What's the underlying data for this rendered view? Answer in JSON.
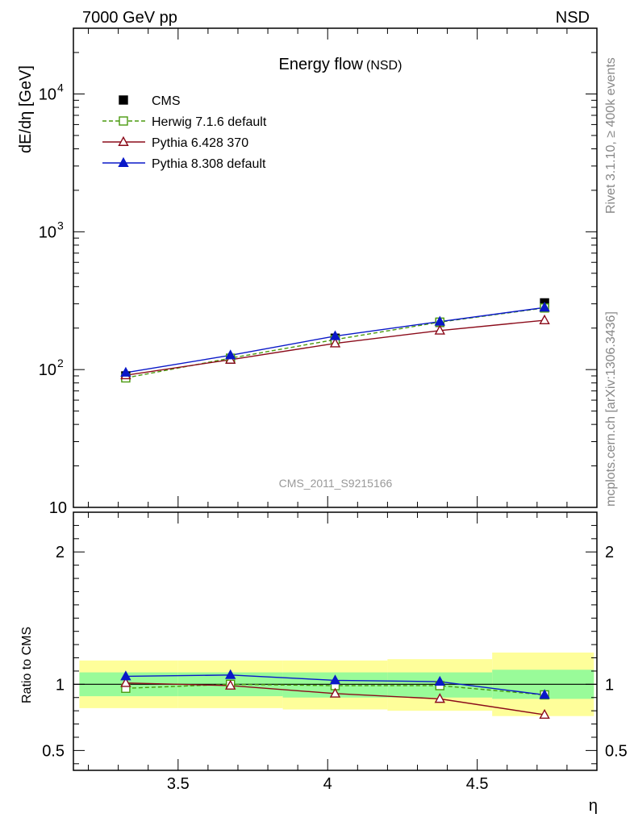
{
  "header": {
    "left": "7000 GeV pp",
    "right": "NSD",
    "side_rivet": "Rivet 3.1.10, ≥ 400k events",
    "side_mcplots": "mcplots.cern.ch [arXiv:1306.3436]"
  },
  "chart_data": [
    {
      "type": "line",
      "title": "Energy flow",
      "subtitle": "(NSD)",
      "watermark": "CMS_2011_S9215166",
      "xlabel": "",
      "ylabel": "dE/dη [GeV]",
      "yscale": "log",
      "xlim": [
        3.15,
        4.9
      ],
      "ylim": [
        10,
        30000
      ],
      "yticks": [
        {
          "v": 10,
          "label": "10",
          "sup": ""
        },
        {
          "v": 100,
          "label": "10",
          "sup": "2"
        },
        {
          "v": 1000,
          "label": "10",
          "sup": "3"
        },
        {
          "v": 10000,
          "label": "10",
          "sup": "4"
        }
      ],
      "legend_position": "top-left",
      "x": [
        3.325,
        3.675,
        4.025,
        4.375,
        4.725
      ],
      "series": [
        {
          "name": "CMS",
          "role": "data",
          "color": "#000000",
          "marker": "square-filled",
          "values": [
            90,
            119,
            169,
            220,
            305
          ]
        },
        {
          "name": "Herwig 7.1.6 default",
          "color": "#4a9a0e",
          "marker": "square-open",
          "dashed": true,
          "values": [
            87,
            121,
            165,
            221,
            280
          ]
        },
        {
          "name": "Pythia 6.428 370",
          "color": "#8b0b1a",
          "marker": "triangle-open",
          "dashed": false,
          "values": [
            91,
            118,
            155,
            192,
            228
          ]
        },
        {
          "name": "Pythia 8.308 default",
          "color": "#0a18c8",
          "marker": "triangle-filled",
          "dashed": false,
          "values": [
            95,
            127,
            175,
            223,
            282
          ]
        }
      ]
    },
    {
      "type": "line",
      "xlabel": "η",
      "ylabel": "Ratio to CMS",
      "xlim": [
        3.15,
        4.9
      ],
      "ylim": [
        0.35,
        2.3
      ],
      "xticks": [
        {
          "v": 3.5,
          "label": "3.5"
        },
        {
          "v": 4.0,
          "label": "4"
        },
        {
          "v": 4.5,
          "label": "4.5"
        }
      ],
      "yticks": [
        {
          "v": 0.5,
          "label": "0.5"
        },
        {
          "v": 1.0,
          "label": "1"
        },
        {
          "v": 2.0,
          "label": "2"
        }
      ],
      "bands": {
        "edges": [
          3.15,
          3.5,
          3.85,
          4.2,
          4.55,
          4.9
        ],
        "green": [
          [
            0.91,
            1.09
          ],
          [
            0.91,
            1.09
          ],
          [
            0.9,
            1.09
          ],
          [
            0.9,
            1.09
          ],
          [
            0.89,
            1.11
          ]
        ],
        "yellow": [
          [
            0.82,
            1.18
          ],
          [
            0.82,
            1.18
          ],
          [
            0.81,
            1.18
          ],
          [
            0.8,
            1.19
          ],
          [
            0.76,
            1.24
          ]
        ],
        "green_color": "#99fb99",
        "yellow_color": "#fefe9a"
      },
      "x": [
        3.325,
        3.675,
        4.025,
        4.375,
        4.725
      ],
      "series": [
        {
          "name": "Herwig 7.1.6 default",
          "color": "#4a9a0e",
          "marker": "square-open",
          "dashed": true,
          "values": [
            0.97,
            1.0,
            0.99,
            0.99,
            0.92
          ]
        },
        {
          "name": "Pythia 6.428 370",
          "color": "#8b0b1a",
          "marker": "triangle-open",
          "dashed": false,
          "values": [
            1.01,
            0.99,
            0.93,
            0.89,
            0.77
          ]
        },
        {
          "name": "Pythia 8.308 default",
          "color": "#0a18c8",
          "marker": "triangle-filled",
          "dashed": false,
          "values": [
            1.06,
            1.07,
            1.03,
            1.02,
            0.92
          ]
        }
      ]
    }
  ]
}
